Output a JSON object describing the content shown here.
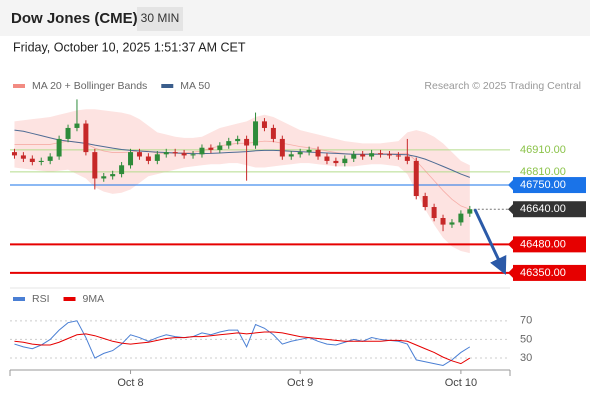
{
  "chart_data": {
    "type": "candlestick",
    "title": "Dow Jones (CME)",
    "timeframe": "30 MIN",
    "subtitle": "Friday, October 10, 2025 1:51:37 AM CET",
    "source": "Research © 2025 Trading Central",
    "up_color": "#2e8b3a",
    "down_color": "#c62828",
    "open": [
      46900,
      46885,
      46870,
      46855,
      46860,
      46880,
      46960,
      47010,
      47030,
      46900,
      46780,
      46790,
      46800,
      46840,
      46900,
      46880,
      46860,
      46890,
      46900,
      46895,
      46885,
      46890,
      46920,
      46910,
      46930,
      46950,
      46960,
      46930,
      47040,
      47010,
      46960,
      46880,
      46890,
      46900,
      46910,
      46880,
      46860,
      46850,
      46870,
      46890,
      46880,
      46895,
      46890,
      46885,
      46880,
      46860,
      46700,
      46650,
      46600,
      46570,
      46580,
      46620
    ],
    "high": [
      46915,
      46900,
      46885,
      46875,
      46895,
      46975,
      47025,
      47140,
      47045,
      46915,
      46805,
      46815,
      46855,
      46915,
      46915,
      46895,
      46905,
      46915,
      46915,
      46910,
      46905,
      46935,
      46935,
      46945,
      46965,
      46975,
      46975,
      47080,
      47055,
      47025,
      46975,
      46905,
      46915,
      46925,
      46925,
      46895,
      46875,
      46885,
      46905,
      46905,
      46910,
      46910,
      46905,
      46900,
      46960,
      46875,
      46715,
      46665,
      46615,
      46595,
      46635,
      46655
    ],
    "low": [
      46870,
      46855,
      46840,
      46840,
      46845,
      46865,
      46945,
      46995,
      46885,
      46730,
      46765,
      46775,
      46785,
      46825,
      46865,
      46845,
      46845,
      46875,
      46880,
      46870,
      46870,
      46875,
      46895,
      46895,
      46915,
      46935,
      46770,
      46915,
      46995,
      46945,
      46865,
      46865,
      46875,
      46885,
      46865,
      46845,
      46835,
      46835,
      46855,
      46865,
      46865,
      46875,
      46870,
      46865,
      46845,
      46685,
      46635,
      46585,
      46540,
      46555,
      46565,
      46605
    ],
    "close": [
      46885,
      46870,
      46855,
      46860,
      46880,
      46960,
      47010,
      47030,
      46900,
      46780,
      46790,
      46800,
      46840,
      46900,
      46880,
      46860,
      46890,
      46900,
      46895,
      46885,
      46890,
      46920,
      46910,
      46930,
      46950,
      46960,
      46930,
      47040,
      47010,
      46960,
      46880,
      46890,
      46900,
      46910,
      46880,
      46860,
      46850,
      46870,
      46890,
      46880,
      46895,
      46890,
      46885,
      46880,
      46860,
      46700,
      46650,
      46600,
      46570,
      46580,
      46620,
      46640
    ],
    "overlays": [
      {
        "name": "MA 20 + Bollinger Bands",
        "color": "#f28b82",
        "fill": "#fde3e1",
        "upper": [
          47040,
          47045,
          47050,
          47055,
          47060,
          47070,
          47080,
          47090,
          47095,
          47095,
          47090,
          47085,
          47080,
          47070,
          47050,
          47020,
          46990,
          46980,
          46970,
          46965,
          46965,
          46970,
          46990,
          47010,
          47020,
          47030,
          47040,
          47060,
          47070,
          47060,
          47040,
          47020,
          47000,
          46990,
          46980,
          46970,
          46960,
          46950,
          46945,
          46940,
          46940,
          46940,
          46945,
          46950,
          46990,
          47000,
          46990,
          46970,
          46940,
          46900,
          46860,
          46840
        ],
        "middle": [
          46935,
          46935,
          46935,
          46935,
          46935,
          46943,
          46950,
          46945,
          46938,
          46918,
          46905,
          46898,
          46898,
          46900,
          46905,
          46905,
          46895,
          46895,
          46895,
          46898,
          46900,
          46905,
          46918,
          46928,
          46935,
          46940,
          46940,
          46945,
          46950,
          46948,
          46940,
          46933,
          46925,
          46920,
          46913,
          46905,
          46898,
          46893,
          46890,
          46890,
          46893,
          46893,
          46893,
          46893,
          46895,
          46860,
          46815,
          46770,
          46725,
          46685,
          46655,
          46640
        ],
        "lower": [
          46830,
          46825,
          46820,
          46815,
          46810,
          46815,
          46820,
          46800,
          46780,
          46740,
          46720,
          46710,
          46715,
          46730,
          46760,
          46790,
          46800,
          46810,
          46820,
          46830,
          46835,
          46840,
          46845,
          46845,
          46850,
          46850,
          46840,
          46830,
          46830,
          46835,
          46840,
          46845,
          46850,
          46850,
          46845,
          46840,
          46835,
          46835,
          46835,
          46840,
          46845,
          46845,
          46840,
          46835,
          46800,
          46720,
          46640,
          46570,
          46510,
          46470,
          46450,
          46440
        ]
      },
      {
        "name": "MA 50",
        "color": "#3b5e8c",
        "values": [
          47000,
          46995,
          46985,
          46975,
          46965,
          46955,
          46950,
          46945,
          46940,
          46932,
          46925,
          46918,
          46912,
          46908,
          46905,
          46902,
          46900,
          46898,
          46896,
          46894,
          46893,
          46893,
          46894,
          46896,
          46898,
          46900,
          46902,
          46906,
          46908,
          46908,
          46906,
          46904,
          46902,
          46900,
          46898,
          46896,
          46894,
          46892,
          46890,
          46890,
          46890,
          46890,
          46890,
          46889,
          46888,
          46880,
          46868,
          46852,
          46835,
          46818,
          46800,
          46785
        ]
      }
    ],
    "levels": [
      {
        "value": 46910,
        "label": "46910.00",
        "color": "#8bc34a",
        "style": "text"
      },
      {
        "value": 46810,
        "label": "46810.00",
        "color": "#8bc34a",
        "style": "text"
      },
      {
        "value": 46750,
        "label": "46750.00",
        "color": "#1a73e8",
        "style": "box"
      },
      {
        "value": 46640,
        "label": "46640.00",
        "color": "#333333",
        "style": "last"
      },
      {
        "value": 46480,
        "label": "46480.00",
        "color": "#e60000",
        "style": "box"
      },
      {
        "value": 46350,
        "label": "46350.00",
        "color": "#e60000",
        "style": "box"
      }
    ],
    "target": 46350,
    "xlim": [
      -0.5,
      55.5
    ],
    "xticks": [
      {
        "value": 13,
        "label": "Oct 8"
      },
      {
        "value": 32,
        "label": "Oct 9"
      },
      {
        "value": 50,
        "label": "Oct 10"
      }
    ],
    "ylim": [
      46295,
      47160
    ],
    "indicator": {
      "type": "line",
      "ylim": [
        15,
        87
      ],
      "yticks": [
        70,
        50,
        30
      ],
      "series": [
        {
          "name": "RSI",
          "color": "#4a7fd4",
          "values": [
            45,
            42,
            40,
            44,
            50,
            60,
            68,
            70,
            52,
            30,
            35,
            38,
            45,
            55,
            52,
            48,
            52,
            55,
            53,
            52,
            53,
            57,
            55,
            58,
            60,
            60,
            42,
            66,
            62,
            55,
            45,
            48,
            50,
            52,
            48,
            45,
            44,
            47,
            50,
            48,
            52,
            50,
            49,
            48,
            45,
            28,
            26,
            24,
            22,
            28,
            36,
            42
          ]
        },
        {
          "name": "9MA",
          "color": "#e60000",
          "values": [
            48,
            47,
            45,
            44,
            44,
            47,
            51,
            55,
            56,
            54,
            51,
            48,
            46,
            45,
            46,
            47,
            49,
            51,
            52,
            52,
            53,
            53,
            54,
            55,
            56,
            57,
            56,
            57,
            58,
            58,
            57,
            55,
            53,
            52,
            51,
            50,
            49,
            48,
            48,
            48,
            48,
            48,
            49,
            49,
            48,
            44,
            40,
            36,
            31,
            27,
            24,
            30
          ]
        }
      ]
    }
  }
}
